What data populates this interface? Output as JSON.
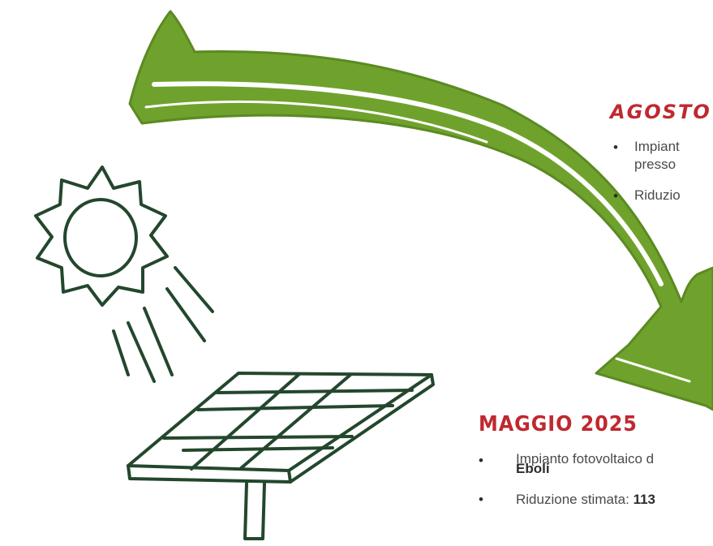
{
  "colors": {
    "arrow": "#6fa22c",
    "arrow_dark": "#5b8a22",
    "ink": "#23472d",
    "heading_red": "#c0282f",
    "text": "#4a4a4a"
  },
  "icons": [
    "curved-arrow",
    "sun-icon",
    "solar-panel-icon"
  ],
  "agosto": {
    "title": "AGOSTO",
    "items": [
      {
        "line1": "Impiant",
        "line2": "presso"
      },
      {
        "line1": "Riduzio"
      }
    ]
  },
  "maggio": {
    "title": "MAGGIO 2025",
    "items": [
      {
        "text": "Impianto fotovoltaico d",
        "strong": "Eboli"
      },
      {
        "text": "Riduzione stimata: ",
        "strong": "113"
      }
    ]
  },
  "bullet": "•"
}
